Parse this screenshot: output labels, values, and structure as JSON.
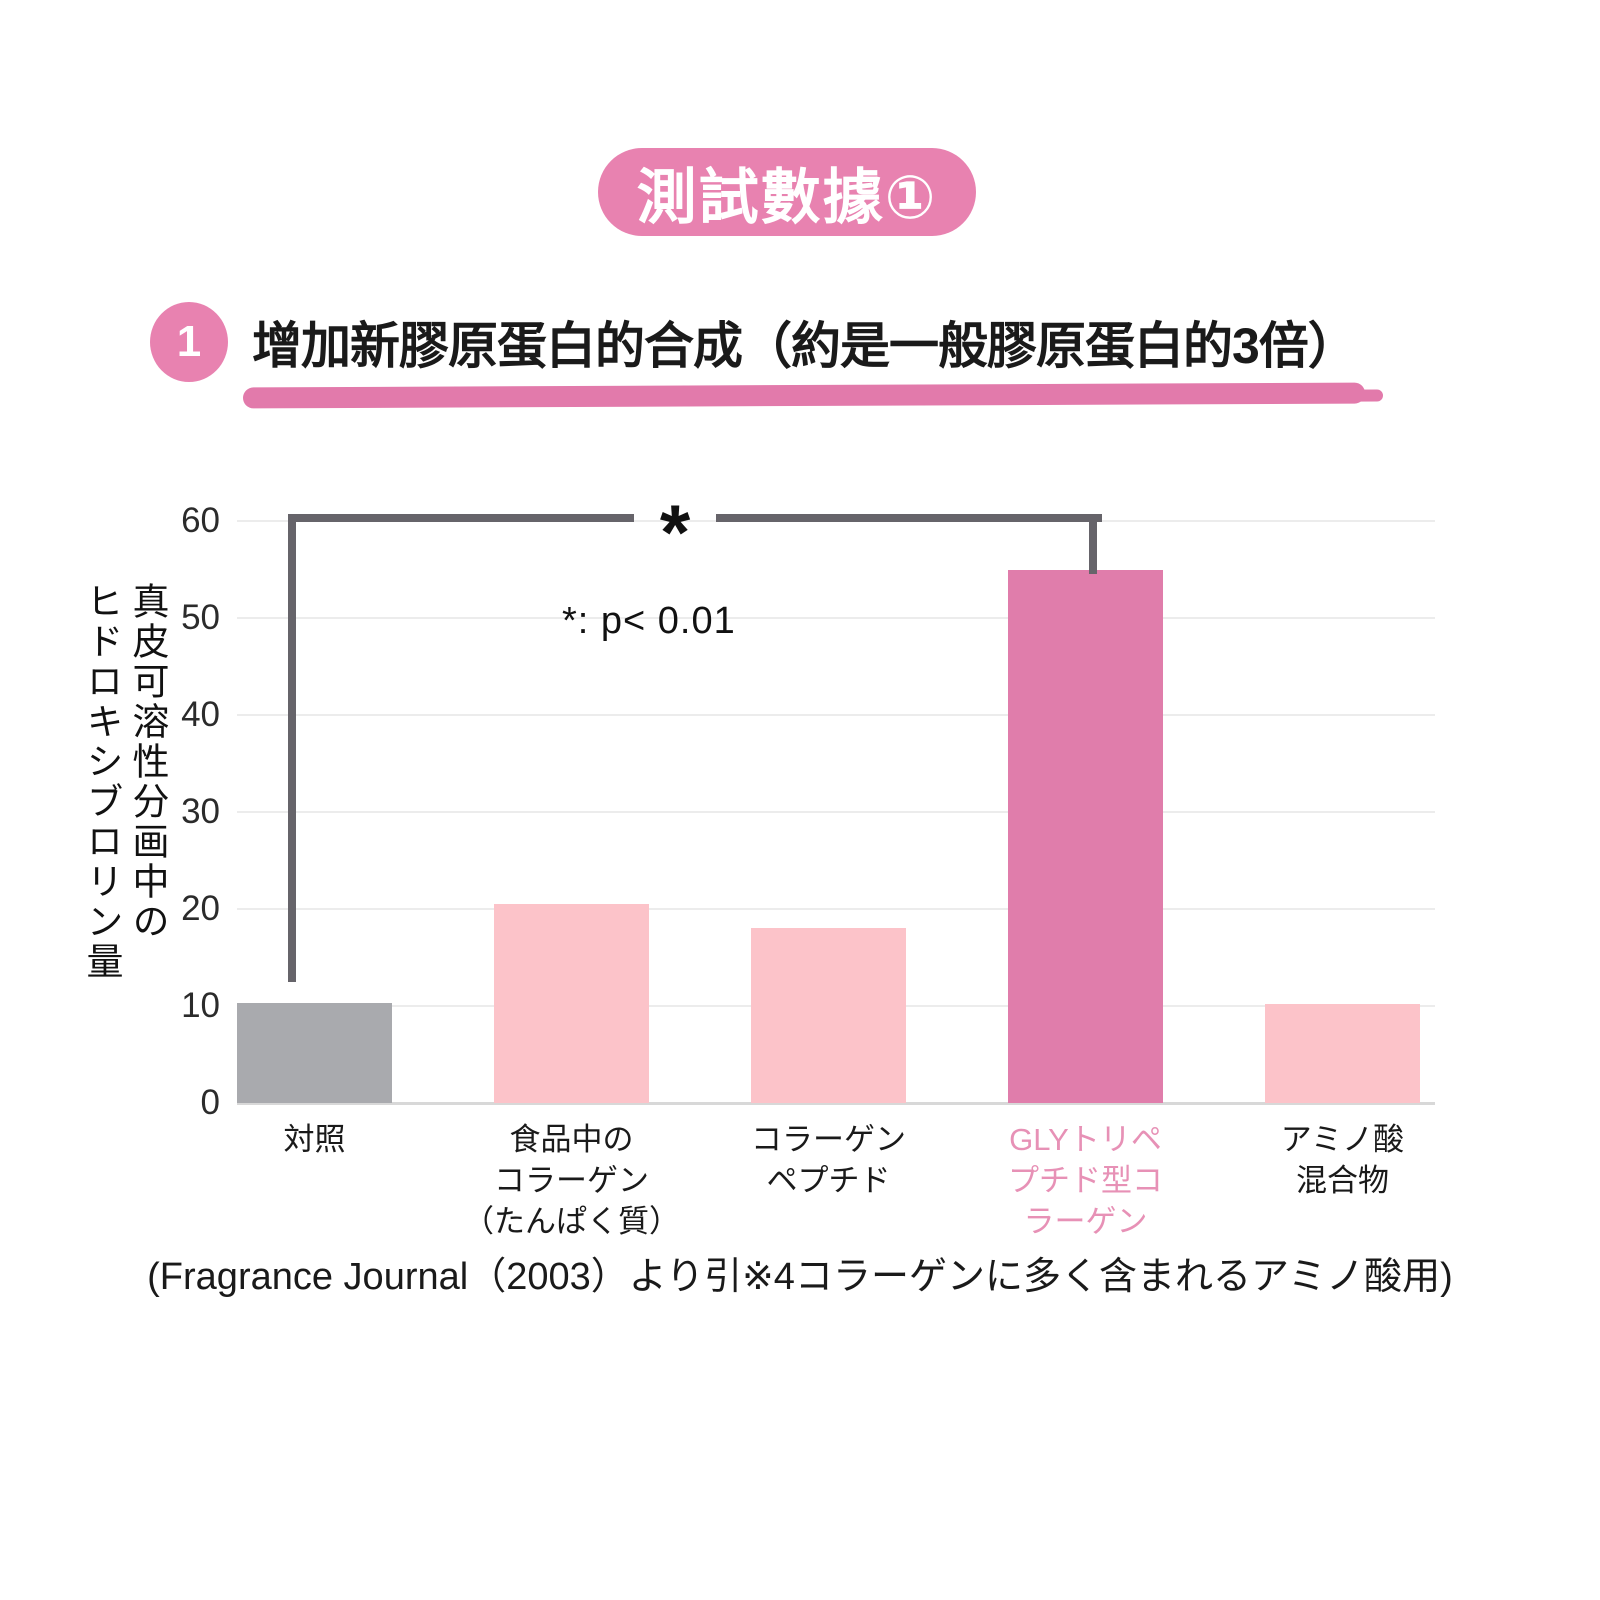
{
  "badge": {
    "label": "測試數據①"
  },
  "heading": {
    "number": "1",
    "title": "增加新膠原蛋白的合成（約是一般膠原蛋白的3倍）"
  },
  "annotation": {
    "asterisk": "*",
    "note": "*: p< 0.01"
  },
  "footer": {
    "source": "(Fragrance Journal（2003）より引※4コラーゲンに多く含まれるアミノ酸用)"
  },
  "colors": {
    "accent_pink": "#e882b0",
    "underline_pink": "#e27aab",
    "bar_gray": "#a9aaae",
    "bar_light_pink": "#fcc3c9",
    "bar_dark_pink": "#e07dab",
    "highlight_label_pink": "#e791b6",
    "bracket_gray": "#66646a",
    "gridline": "#ececec",
    "text": "#1a1a1a"
  },
  "chart_data": {
    "type": "bar",
    "title": "",
    "xlabel": "",
    "ylabel": "真皮可溶性分画中のヒドロキシブロリン量",
    "ylabel_lines": [
      "真皮可溶性分画中の",
      "ヒドロキシブロリン量"
    ],
    "ylim": [
      0,
      60
    ],
    "yticks": [
      0,
      10,
      20,
      30,
      40,
      50,
      60
    ],
    "grid": true,
    "legend": "none",
    "categories": [
      "対照",
      "食品中のコラーゲン（たんぱく質）",
      "コラーゲンペプチド",
      "GLYトリペプチド型コラーゲン",
      "アミノ酸混合物"
    ],
    "category_lines": [
      [
        "対照"
      ],
      [
        "食品中の",
        "コラーゲン",
        "（たんぱく質）"
      ],
      [
        "コラーゲン",
        "ペプチド"
      ],
      [
        "GLYトリペ",
        "プチド型コ",
        "ラーゲン"
      ],
      [
        "アミノ酸",
        "混合物"
      ]
    ],
    "values": [
      10.3,
      20.5,
      18,
      55,
      10.2
    ],
    "bar_colors": [
      "#a9aaae",
      "#fcc3c9",
      "#fcc3c9",
      "#e07dab",
      "#fcc3c9"
    ],
    "label_colors": [
      "#1a1a1a",
      "#1a1a1a",
      "#1a1a1a",
      "#e791b6",
      "#1a1a1a"
    ],
    "significance": {
      "symbol": "*",
      "note": "*: p< 0.01",
      "from_category": "対照",
      "to_category": "GLYトリペプチド型コラーゲン"
    }
  }
}
